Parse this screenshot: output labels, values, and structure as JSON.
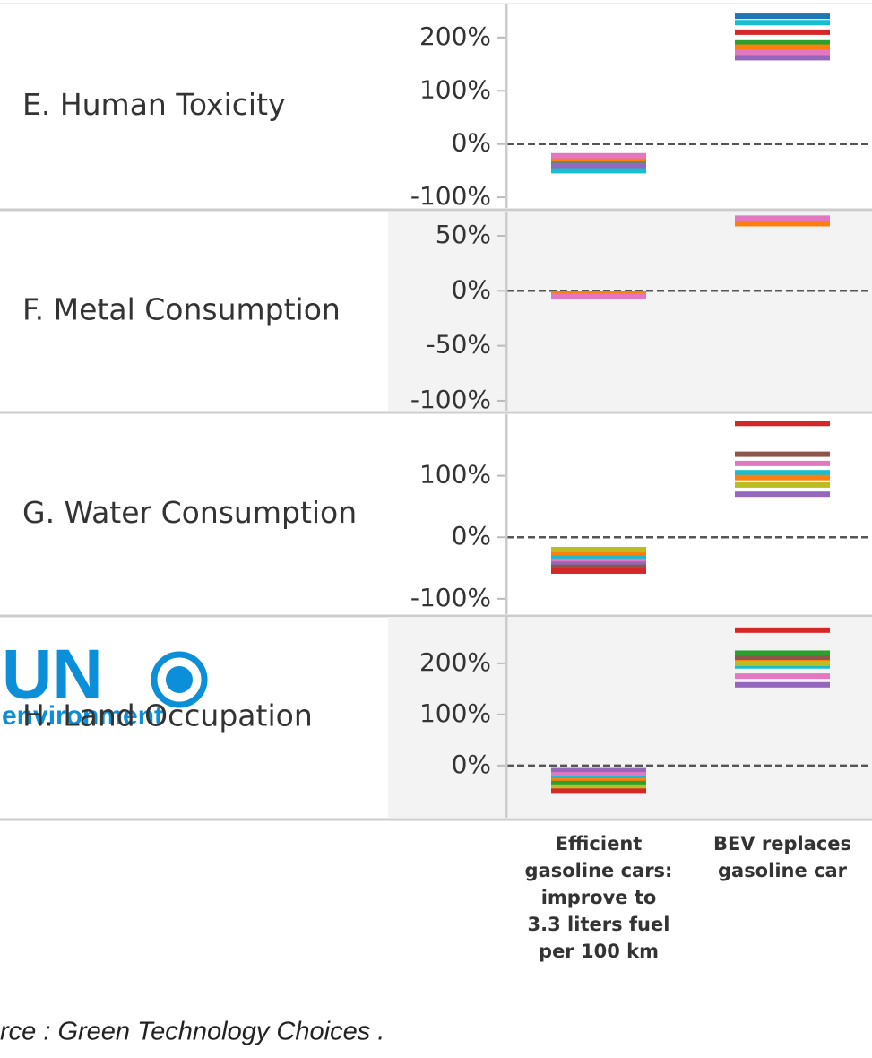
{
  "chart_data": [
    {
      "type": "strip",
      "title": "E. Human Toxicity",
      "categories": [
        "Efficient gasoline cars: improve to 3.3 liters fuel per 100 km",
        "BEV replaces gasoline car"
      ],
      "ylim": [
        -120,
        262
      ],
      "yticks": [
        {
          "value": -100,
          "label": "-100%"
        },
        {
          "value": 0,
          "label": "0%"
        },
        {
          "value": 100,
          "label": "100%"
        },
        {
          "value": 200,
          "label": "200%"
        }
      ],
      "series": [
        {
          "color": "#1f77b4",
          "values": [
            -45,
            240
          ]
        },
        {
          "color": "#17becf",
          "values": [
            -50,
            228
          ]
        },
        {
          "color": "#d62728",
          "values": [
            -35,
            210
          ]
        },
        {
          "color": "#2ca02c",
          "values": [
            -30,
            190
          ]
        },
        {
          "color": "#ff7f0e",
          "values": [
            -28,
            182
          ]
        },
        {
          "color": "#e377c2",
          "values": [
            -22,
            172
          ]
        },
        {
          "color": "#9467bd",
          "values": [
            -40,
            162
          ]
        }
      ]
    },
    {
      "type": "strip",
      "title": "F. Metal Consumption",
      "categories": [
        "Efficient gasoline cars: improve to 3.3 liters fuel per 100 km",
        "BEV replaces gasoline car"
      ],
      "ylim": [
        -109,
        72
      ],
      "yticks": [
        {
          "value": -100,
          "label": "-100%"
        },
        {
          "value": -50,
          "label": "-50%"
        },
        {
          "value": 0,
          "label": "0%"
        },
        {
          "value": 50,
          "label": "50%"
        }
      ],
      "series": [
        {
          "color": "#ff7f0e",
          "values": [
            -3,
            61
          ]
        },
        {
          "color": "#e377c2",
          "values": [
            -5,
            66
          ]
        }
      ]
    },
    {
      "type": "strip",
      "title": "G. Water Consumption",
      "categories": [
        "Efficient gasoline cars: improve to 3.3 liters fuel per 100 km",
        "BEV replaces gasoline car"
      ],
      "ylim": [
        -125,
        200
      ],
      "yticks": [
        {
          "value": -100,
          "label": "-100%"
        },
        {
          "value": 0,
          "label": "0%"
        },
        {
          "value": 100,
          "label": "100%"
        }
      ],
      "series": [
        {
          "color": "#d62728",
          "values": [
            -55,
            185
          ]
        },
        {
          "color": "#8c564b",
          "values": [
            -45,
            135
          ]
        },
        {
          "color": "#9467bd",
          "values": [
            -40,
            70
          ]
        },
        {
          "color": "#e377c2",
          "values": [
            -35,
            120
          ]
        },
        {
          "color": "#17becf",
          "values": [
            -30,
            105
          ]
        },
        {
          "color": "#ff7f0e",
          "values": [
            -25,
            97
          ]
        },
        {
          "color": "#bcbd22",
          "values": [
            -20,
            85
          ]
        }
      ]
    },
    {
      "type": "strip",
      "title": "H. Land Occupation",
      "categories": [
        "Efficient gasoline cars: improve to 3.3 liters fuel per 100 km",
        "BEV replaces gasoline car"
      ],
      "ylim": [
        -102,
        291
      ],
      "yticks": [
        {
          "value": 0,
          "label": "0%"
        },
        {
          "value": 100,
          "label": "100%"
        },
        {
          "value": 200,
          "label": "200%"
        }
      ],
      "series": [
        {
          "color": "#9467bd",
          "values": [
            -10,
            158
          ]
        },
        {
          "color": "#e377c2",
          "values": [
            -18,
            175
          ]
        },
        {
          "color": "#17becf",
          "values": [
            -25,
            195
          ]
        },
        {
          "color": "#ff7f0e",
          "values": [
            -30,
            205
          ]
        },
        {
          "color": "#8c564b",
          "values": [
            -38,
            212
          ]
        },
        {
          "color": "#2ca02c",
          "values": [
            -35,
            220
          ]
        },
        {
          "color": "#bcbd22",
          "values": [
            -42,
            200
          ]
        },
        {
          "color": "#d62728",
          "values": [
            -50,
            265
          ]
        }
      ]
    }
  ],
  "logo": {
    "text": "UN",
    "subtext": "environment"
  },
  "source": "rce : Green Technology Choices ."
}
